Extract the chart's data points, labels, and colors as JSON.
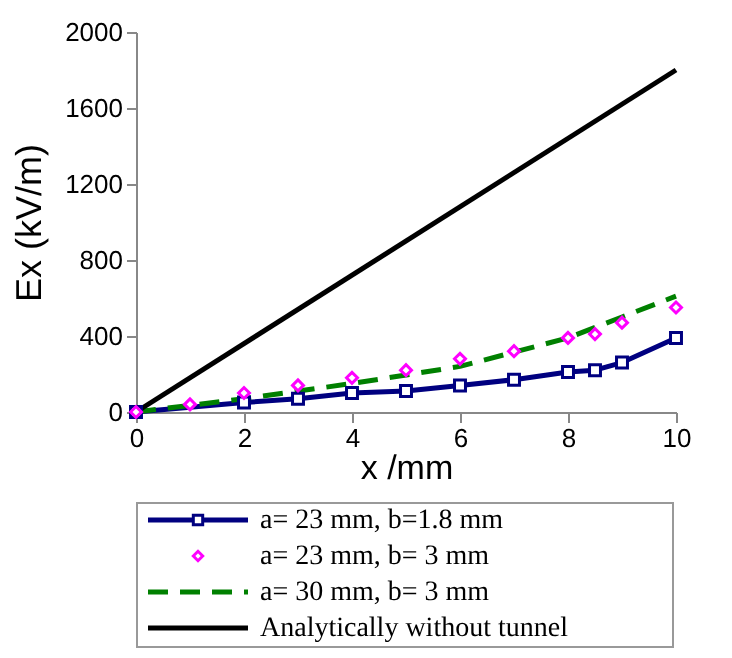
{
  "chart_data": {
    "type": "line",
    "xlabel": "x /mm",
    "ylabel": "Ex (kV/m)",
    "xlim": [
      0,
      10
    ],
    "xticks": [
      0,
      2,
      4,
      6,
      8,
      10
    ],
    "ylim": [
      0,
      2000
    ],
    "yticks": [
      0,
      400,
      800,
      1200,
      1600,
      2000
    ],
    "grid": false,
    "legend": "bottom",
    "series": [
      {
        "name": "a= 23 mm, b=1.8 mm",
        "color": "#000080",
        "marker": "square",
        "line_style": "solid",
        "x": [
          0,
          2,
          3,
          4,
          5,
          6,
          7,
          8,
          8.5,
          9,
          10
        ],
        "values": [
          0,
          50,
          70,
          100,
          110,
          140,
          170,
          210,
          220,
          260,
          390
        ]
      },
      {
        "name": "a= 23 mm, b= 3 mm",
        "type": "scatter",
        "color": "#ff00ff",
        "marker": "diamond",
        "x": [
          0,
          1,
          2,
          3,
          4,
          5,
          6,
          7,
          8,
          8.5,
          9,
          10
        ],
        "values": [
          0,
          40,
          100,
          140,
          180,
          220,
          280,
          320,
          390,
          410,
          470,
          550
        ]
      },
      {
        "name": "a= 30 mm, b= 3 mm",
        "color": "#008000",
        "marker": "none",
        "line_style": "dashed",
        "x": [
          0,
          2,
          4,
          6,
          8,
          9,
          10
        ],
        "values": [
          0,
          70,
          150,
          240,
          390,
          500,
          610
        ]
      },
      {
        "name": "Analytically without tunnel",
        "color": "#000000",
        "marker": "none",
        "line_style": "solid",
        "x": [
          0,
          10
        ],
        "values": [
          0,
          1800
        ]
      }
    ]
  }
}
